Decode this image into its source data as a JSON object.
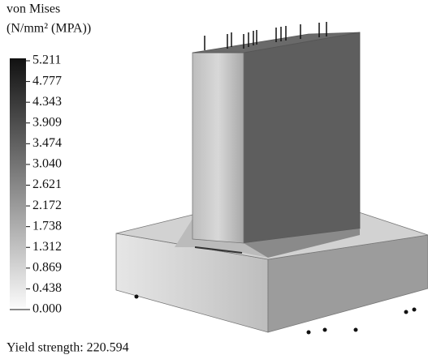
{
  "legend": {
    "title": "von Mises",
    "unit": "(N/mm² (MPA))",
    "labels": [
      "5.211",
      "4.777",
      "4.343",
      "3.909",
      "3.474",
      "3.040",
      "2.621",
      "2.172",
      "1.738",
      "1.312",
      "0.869",
      "0.438",
      "0.000"
    ]
  },
  "footer": {
    "yield_strength": "Yield strength: 220.594"
  }
}
